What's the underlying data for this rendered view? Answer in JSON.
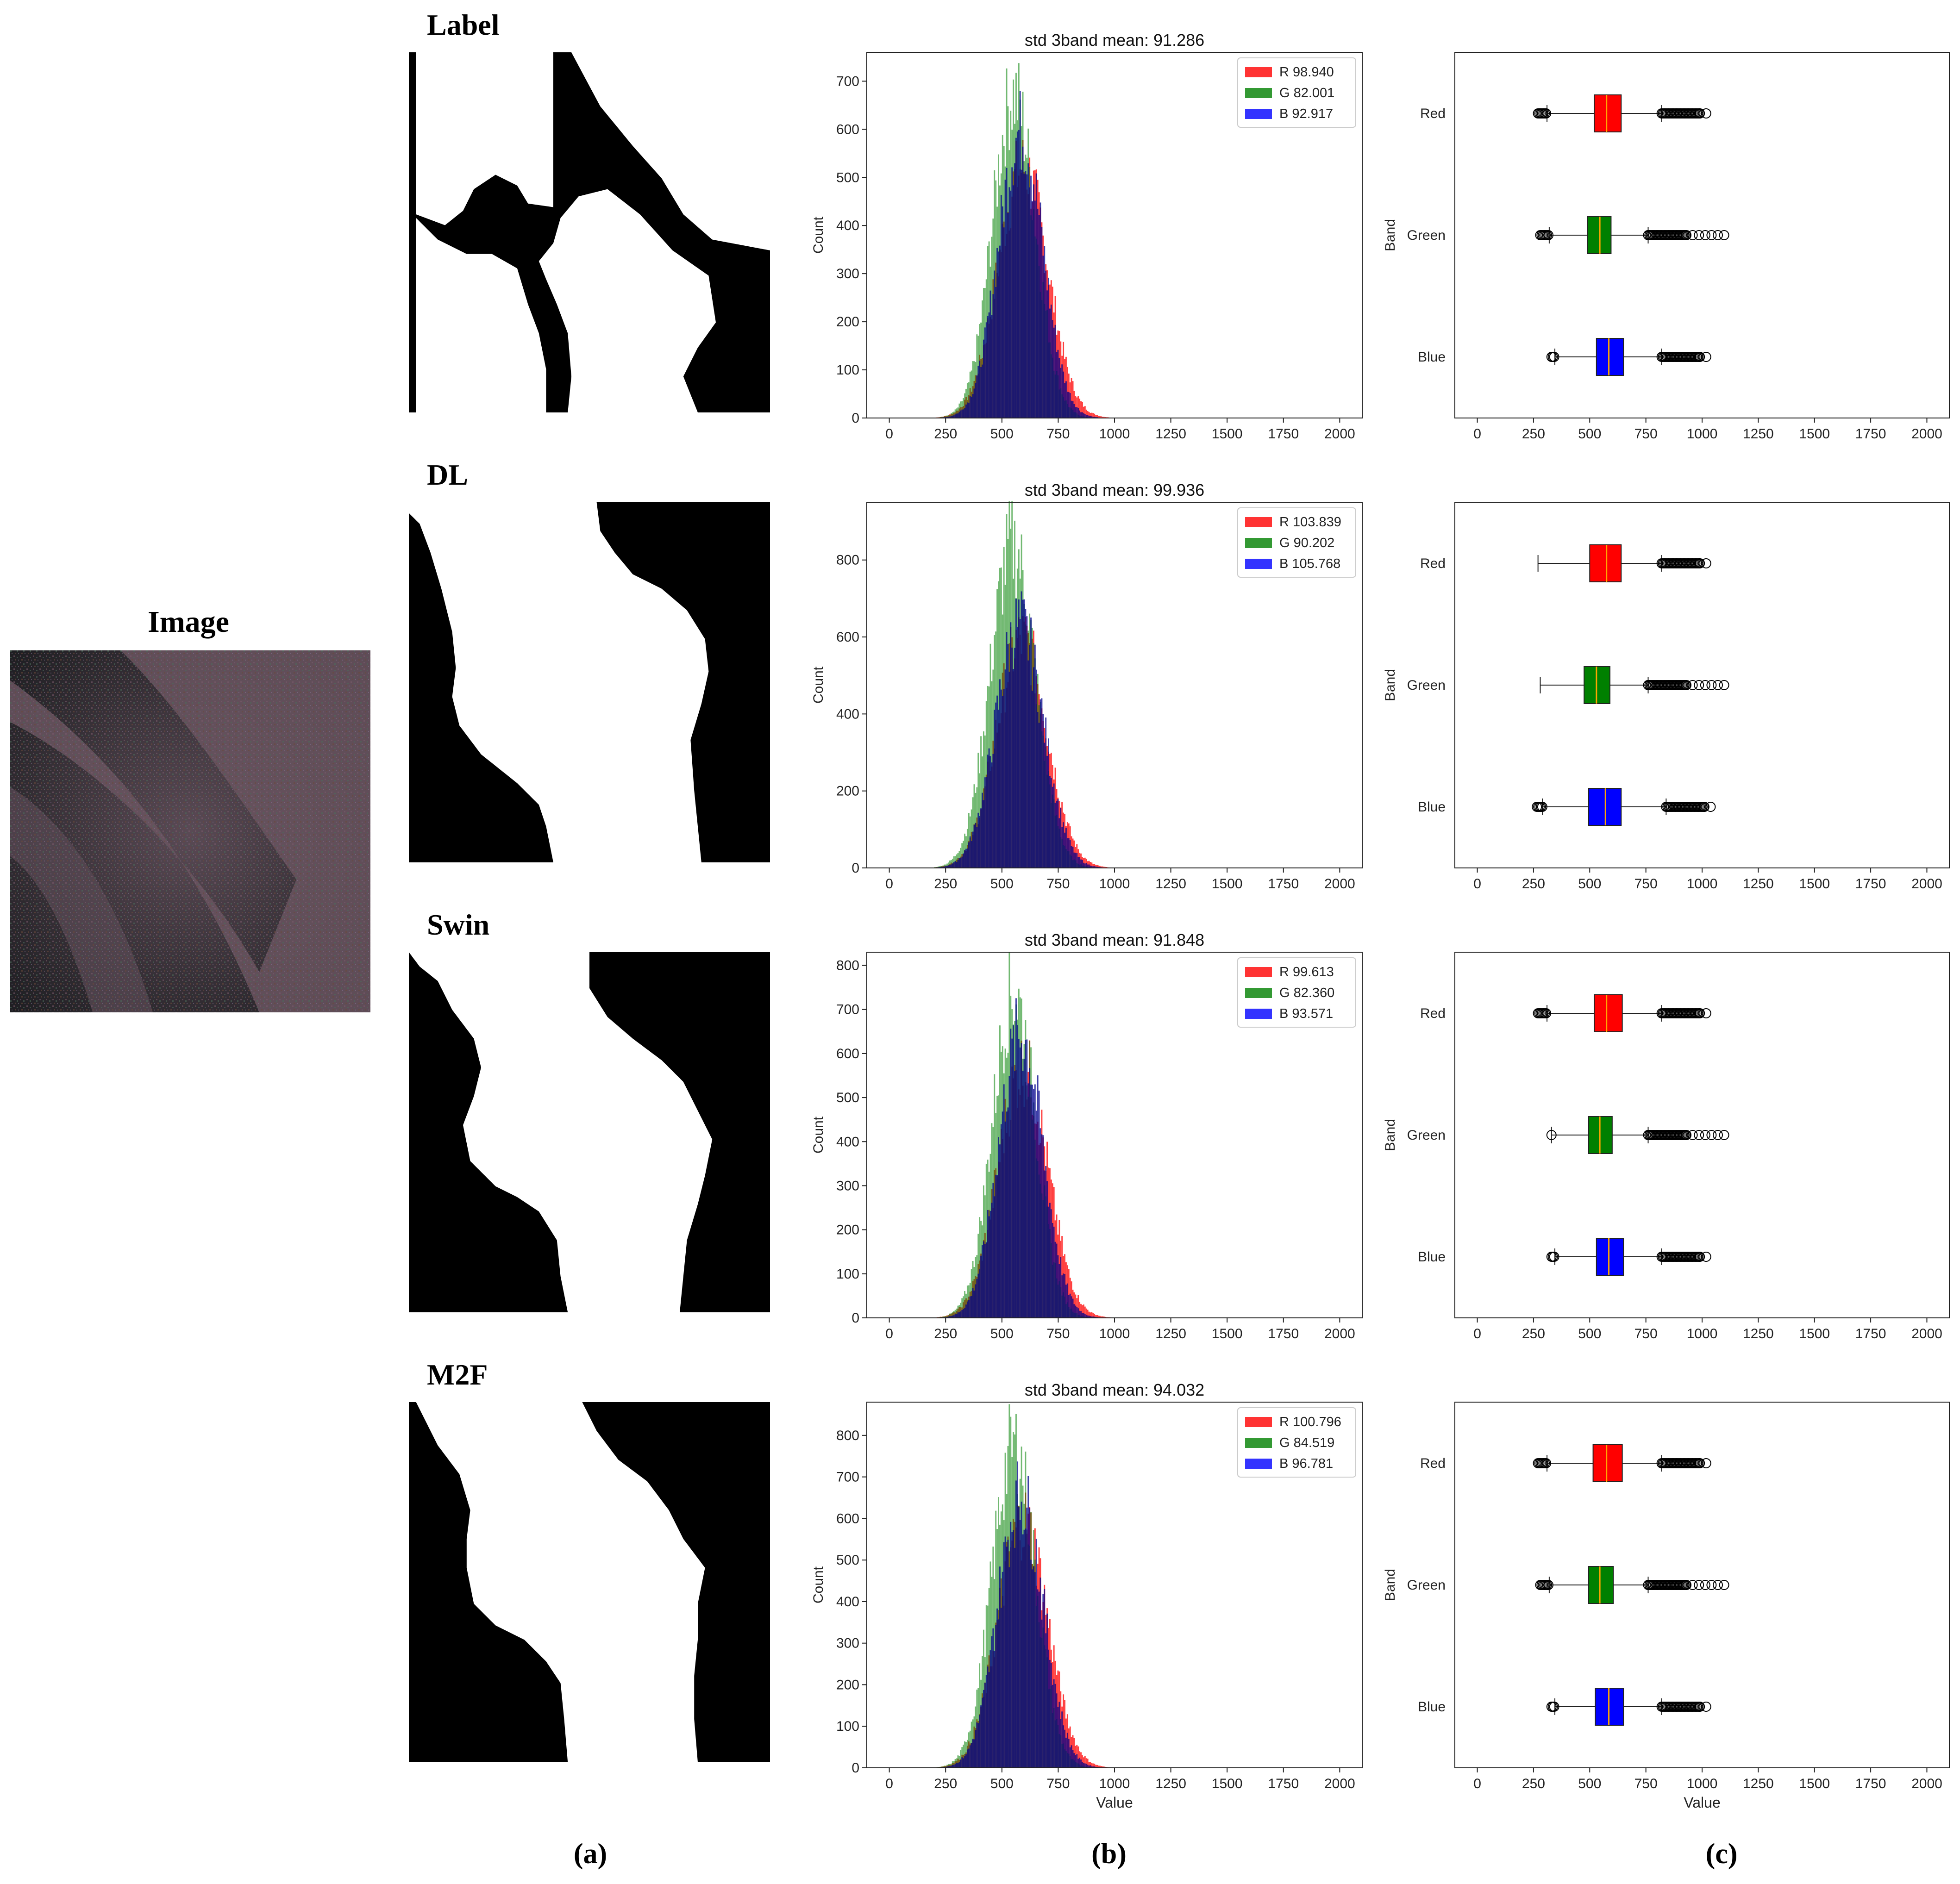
{
  "image_panel": {
    "title": "Image"
  },
  "mask_titles": [
    "Label",
    "DL",
    "Swin",
    "M2F"
  ],
  "panel_labels": [
    "(a)",
    "(b)",
    "(c)"
  ],
  "colors": {
    "red": "#ff0000",
    "green": "#008000",
    "blue": "#0000ff",
    "dark_blue": "#00008b"
  },
  "chart_data": [
    {
      "type": "bar",
      "kind": "histogram",
      "title": "std 3band mean: 91.286",
      "xlabel": "",
      "ylabel": "Count",
      "xlim": [
        -100,
        2100
      ],
      "ylim": [
        0,
        760
      ],
      "xticks": [
        0,
        250,
        500,
        750,
        1000,
        1250,
        1500,
        1750,
        2000
      ],
      "yticks": [
        0,
        100,
        200,
        300,
        400,
        500,
        600,
        700
      ],
      "legend_position": "upper right",
      "series": [
        {
          "name": "R 98.940",
          "color": "#ff0000",
          "mean": 590,
          "sd": 110,
          "peak": 560
        },
        {
          "name": "G 82.001",
          "color": "#008000",
          "mean": 550,
          "sd": 95,
          "peak": 720
        },
        {
          "name": "B 92.917",
          "color": "#0000ff",
          "mean": 580,
          "sd": 98,
          "peak": 640
        }
      ]
    },
    {
      "type": "bar",
      "kind": "histogram",
      "title": "std 3band mean: 99.936",
      "xlabel": "",
      "ylabel": "Count",
      "xlim": [
        -100,
        2100
      ],
      "ylim": [
        0,
        950
      ],
      "xticks": [
        0,
        250,
        500,
        750,
        1000,
        1250,
        1500,
        1750,
        2000
      ],
      "yticks": [
        0,
        200,
        400,
        600,
        800
      ],
      "legend_position": "upper right",
      "series": [
        {
          "name": "R 103.839",
          "color": "#ff0000",
          "mean": 585,
          "sd": 112,
          "peak": 640
        },
        {
          "name": "G 90.202",
          "color": "#008000",
          "mean": 545,
          "sd": 100,
          "peak": 900
        },
        {
          "name": "B 105.768",
          "color": "#0000ff",
          "mean": 575,
          "sd": 105,
          "peak": 680
        }
      ]
    },
    {
      "type": "bar",
      "kind": "histogram",
      "title": "std 3band mean: 91.848",
      "xlabel": "",
      "ylabel": "Count",
      "xlim": [
        -100,
        2100
      ],
      "ylim": [
        0,
        830
      ],
      "xticks": [
        0,
        250,
        500,
        750,
        1000,
        1250,
        1500,
        1750,
        2000
      ],
      "yticks": [
        0,
        100,
        200,
        300,
        400,
        500,
        600,
        700,
        800
      ],
      "legend_position": "upper right",
      "series": [
        {
          "name": "R 99.613",
          "color": "#ff0000",
          "mean": 590,
          "sd": 110,
          "peak": 610
        },
        {
          "name": "G 82.360",
          "color": "#008000",
          "mean": 550,
          "sd": 95,
          "peak": 790
        },
        {
          "name": "B 93.571",
          "color": "#0000ff",
          "mean": 580,
          "sd": 98,
          "peak": 690
        }
      ]
    },
    {
      "type": "bar",
      "kind": "histogram",
      "title": "std 3band mean: 94.032",
      "xlabel": "Value",
      "ylabel": "Count",
      "xlim": [
        -100,
        2100
      ],
      "ylim": [
        0,
        880
      ],
      "xticks": [
        0,
        250,
        500,
        750,
        1000,
        1250,
        1500,
        1750,
        2000
      ],
      "yticks": [
        0,
        100,
        200,
        300,
        400,
        500,
        600,
        700,
        800
      ],
      "legend_position": "upper right",
      "series": [
        {
          "name": "R 100.796",
          "color": "#ff0000",
          "mean": 590,
          "sd": 110,
          "peak": 640
        },
        {
          "name": "G 84.519",
          "color": "#008000",
          "mean": 550,
          "sd": 96,
          "peak": 830
        },
        {
          "name": "B 96.781",
          "color": "#0000ff",
          "mean": 580,
          "sd": 100,
          "peak": 700
        }
      ]
    },
    {
      "type": "box",
      "orientation": "horizontal",
      "xlabel": "",
      "ylabel": "Band",
      "xlim": [
        -100,
        2100
      ],
      "xticks": [
        0,
        250,
        500,
        750,
        1000,
        1250,
        1500,
        1750,
        2000
      ],
      "categories": [
        "Red",
        "Green",
        "Blue"
      ],
      "boxes": [
        {
          "label": "Red",
          "color": "#ff0000",
          "whisker_low": 310,
          "q1": 520,
          "median": 575,
          "q3": 640,
          "whisker_high": 820,
          "outliers_low": [
            270,
            310
          ],
          "outliers_high": [
            820,
            1040
          ]
        },
        {
          "label": "Green",
          "color": "#008000",
          "whisker_low": 320,
          "q1": 490,
          "median": 545,
          "q3": 595,
          "whisker_high": 760,
          "outliers_low": [
            280,
            320
          ],
          "outliers_high": [
            760,
            1120
          ]
        },
        {
          "label": "Blue",
          "color": "#0000ff",
          "whisker_low": 345,
          "q1": 530,
          "median": 585,
          "q3": 650,
          "whisker_high": 820,
          "outliers_low": [
            330,
            345
          ],
          "outliers_high": [
            820,
            1040
          ]
        }
      ]
    },
    {
      "type": "box",
      "orientation": "horizontal",
      "xlabel": "",
      "ylabel": "Band",
      "xlim": [
        -100,
        2100
      ],
      "xticks": [
        0,
        250,
        500,
        750,
        1000,
        1250,
        1500,
        1750,
        2000
      ],
      "categories": [
        "Red",
        "Green",
        "Blue"
      ],
      "boxes": [
        {
          "label": "Red",
          "color": "#ff0000",
          "whisker_low": 270,
          "q1": 500,
          "median": 575,
          "q3": 640,
          "whisker_high": 820,
          "outliers_low": [],
          "outliers_high": [
            820,
            1040
          ]
        },
        {
          "label": "Green",
          "color": "#008000",
          "whisker_low": 280,
          "q1": 475,
          "median": 530,
          "q3": 590,
          "whisker_high": 760,
          "outliers_low": [],
          "outliers_high": [
            760,
            1120
          ]
        },
        {
          "label": "Blue",
          "color": "#0000ff",
          "whisker_low": 290,
          "q1": 495,
          "median": 570,
          "q3": 640,
          "whisker_high": 840,
          "outliers_low": [
            265,
            290
          ],
          "outliers_high": [
            840,
            1040
          ]
        }
      ]
    },
    {
      "type": "box",
      "orientation": "horizontal",
      "xlabel": "",
      "ylabel": "Band",
      "xlim": [
        -100,
        2100
      ],
      "xticks": [
        0,
        250,
        500,
        750,
        1000,
        1250,
        1500,
        1750,
        2000
      ],
      "categories": [
        "Red",
        "Green",
        "Blue"
      ],
      "boxes": [
        {
          "label": "Red",
          "color": "#ff0000",
          "whisker_low": 310,
          "q1": 520,
          "median": 575,
          "q3": 645,
          "whisker_high": 820,
          "outliers_low": [
            270,
            310
          ],
          "outliers_high": [
            820,
            1040
          ]
        },
        {
          "label": "Green",
          "color": "#008000",
          "whisker_low": 330,
          "q1": 495,
          "median": 545,
          "q3": 600,
          "whisker_high": 760,
          "outliers_low": [
            330
          ],
          "outliers_high": [
            760,
            1120
          ]
        },
        {
          "label": "Blue",
          "color": "#0000ff",
          "whisker_low": 345,
          "q1": 530,
          "median": 585,
          "q3": 650,
          "whisker_high": 820,
          "outliers_low": [
            330,
            345
          ],
          "outliers_high": [
            820,
            1040
          ]
        }
      ]
    },
    {
      "type": "box",
      "orientation": "horizontal",
      "xlabel": "Value",
      "ylabel": "Band",
      "xlim": [
        -100,
        2100
      ],
      "xticks": [
        0,
        250,
        500,
        750,
        1000,
        1250,
        1500,
        1750,
        2000
      ],
      "categories": [
        "Red",
        "Green",
        "Blue"
      ],
      "boxes": [
        {
          "label": "Red",
          "color": "#ff0000",
          "whisker_low": 310,
          "q1": 515,
          "median": 575,
          "q3": 645,
          "whisker_high": 820,
          "outliers_low": [
            270,
            310
          ],
          "outliers_high": [
            820,
            1040
          ]
        },
        {
          "label": "Green",
          "color": "#008000",
          "whisker_low": 320,
          "q1": 495,
          "median": 545,
          "q3": 605,
          "whisker_high": 760,
          "outliers_low": [
            280,
            320
          ],
          "outliers_high": [
            760,
            1120
          ]
        },
        {
          "label": "Blue",
          "color": "#0000ff",
          "whisker_low": 345,
          "q1": 525,
          "median": 585,
          "q3": 650,
          "whisker_high": 820,
          "outliers_low": [
            330,
            345
          ],
          "outliers_high": [
            820,
            1040
          ]
        }
      ]
    }
  ]
}
